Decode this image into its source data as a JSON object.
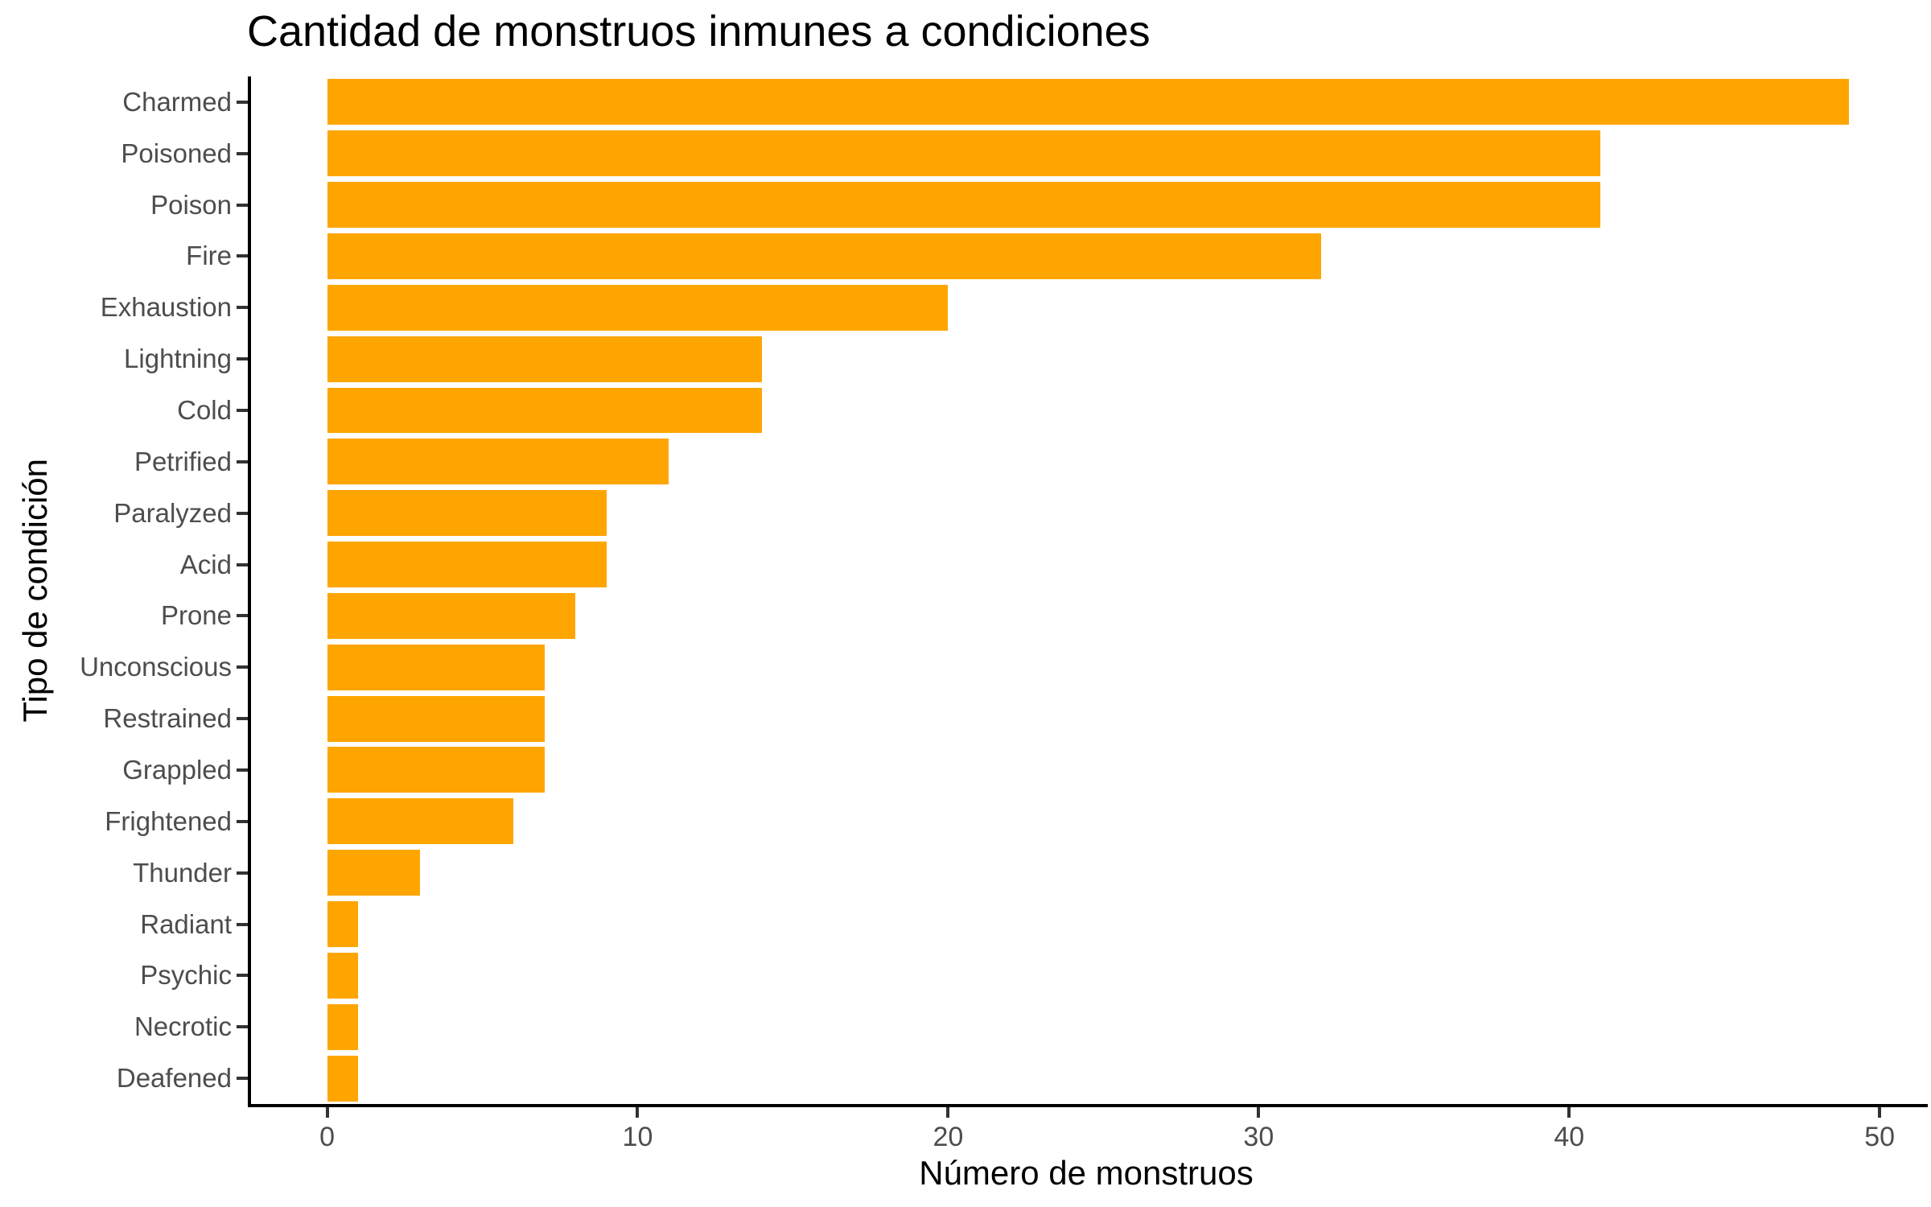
{
  "chart_data": {
    "type": "bar",
    "orientation": "horizontal",
    "title": "Cantidad de monstruos inmunes a condiciones",
    "xlabel": "Número de monstruos",
    "ylabel": "Tipo de condición",
    "categories": [
      "Charmed",
      "Poisoned",
      "Poison",
      "Fire",
      "Exhaustion",
      "Lightning",
      "Cold",
      "Petrified",
      "Paralyzed",
      "Acid",
      "Prone",
      "Unconscious",
      "Restrained",
      "Grappled",
      "Frightened",
      "Thunder",
      "Radiant",
      "Psychic",
      "Necrotic",
      "Deafened"
    ],
    "values": [
      49,
      41,
      41,
      32,
      20,
      14,
      14,
      11,
      9,
      9,
      8,
      7,
      7,
      7,
      6,
      3,
      1,
      1,
      1,
      1
    ],
    "x_ticks": [
      0,
      10,
      20,
      30,
      40,
      50
    ],
    "xlim": [
      -2.45,
      51.55
    ],
    "grid": false,
    "legend": false,
    "colors": {
      "bar": "#FFA500",
      "axis_line": "#000000",
      "tick_mark": "#333333",
      "tick_text": "#4d4d4d",
      "title_text": "#000000",
      "background": "#ffffff"
    }
  }
}
